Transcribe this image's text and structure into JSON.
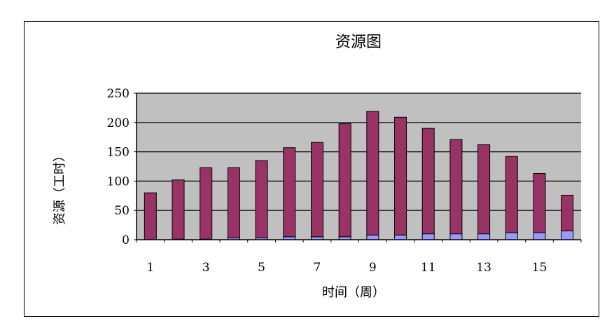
{
  "chart_data": {
    "type": "bar",
    "title": "资源图",
    "xlabel": "时间（周）",
    "ylabel": "资源（工时）",
    "ylim": [
      0,
      250
    ],
    "yticks": [
      0,
      50,
      100,
      150,
      200,
      250
    ],
    "categories": [
      "1",
      "2",
      "3",
      "4",
      "5",
      "6",
      "7",
      "8",
      "9",
      "10",
      "11",
      "12",
      "13",
      "14",
      "15",
      "16"
    ],
    "x_tick_labels_shown": [
      "1",
      "3",
      "5",
      "7",
      "9",
      "11",
      "13",
      "15"
    ],
    "stacked": true,
    "grid": true,
    "legend": "none",
    "series": [
      {
        "color": "#9999ff",
        "values": [
          0,
          1,
          1,
          3,
          3,
          5,
          5,
          5,
          8,
          8,
          10,
          10,
          10,
          12,
          12,
          15
        ]
      },
      {
        "color": "#993366",
        "values": [
          80,
          101,
          122,
          120,
          132,
          152,
          161,
          193,
          211,
          201,
          180,
          161,
          152,
          130,
          101,
          61
        ]
      }
    ],
    "plot_background": "#c0c0c0"
  }
}
